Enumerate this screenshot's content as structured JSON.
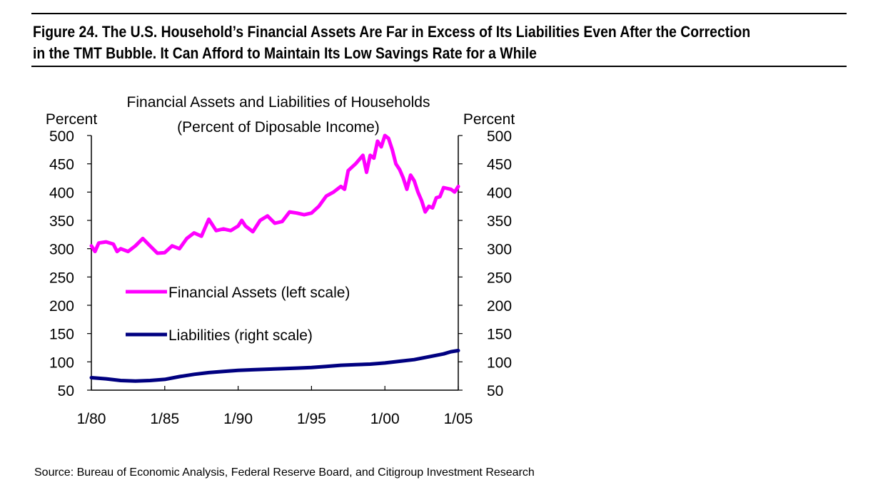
{
  "figure": {
    "title_line1": "Figure 24.  The U.S. Household’s Financial Assets Are Far in Excess of Its Liabilities Even After the Correction",
    "title_line2": "in the TMT Bubble.  It Can Afford to Maintain Its Low Savings Rate for a While",
    "source": "Source:  Bureau of Economic Analysis, Federal Reserve Board, and Citigroup Investment Research"
  },
  "chart_data": {
    "type": "line",
    "title": "Financial Assets and Liabilities of Households",
    "subtitle": "(Percent of Diposable Income)",
    "ylabel_left": "Percent",
    "ylabel_right": "Percent",
    "xlim": [
      1980,
      2005
    ],
    "ylim": [
      50,
      500
    ],
    "yticks": [
      500,
      450,
      400,
      350,
      300,
      250,
      200,
      150,
      100,
      50
    ],
    "ytick_labels": [
      "500",
      "450",
      "400",
      "350",
      "300",
      "250",
      "200",
      "150",
      "100",
      "50"
    ],
    "xticks": [
      1980,
      1985,
      1990,
      1995,
      2000,
      2005
    ],
    "xtick_labels": [
      "1/80",
      "1/85",
      "1/90",
      "1/95",
      "1/00",
      "1/05"
    ],
    "legend_position": "center-left",
    "series": [
      {
        "name": "Financial Assets (left scale)",
        "color": "#ff00ff",
        "x": [
          1980.0,
          1980.25,
          1980.5,
          1981.0,
          1981.5,
          1981.75,
          1982.0,
          1982.5,
          1983.0,
          1983.5,
          1984.0,
          1984.5,
          1985.0,
          1985.5,
          1986.0,
          1986.5,
          1987.0,
          1987.5,
          1987.75,
          1988.0,
          1988.5,
          1989.0,
          1989.5,
          1990.0,
          1990.25,
          1990.5,
          1991.0,
          1991.5,
          1992.0,
          1992.5,
          1993.0,
          1993.5,
          1994.0,
          1994.5,
          1995.0,
          1995.5,
          1996.0,
          1996.5,
          1997.0,
          1997.25,
          1997.5,
          1998.0,
          1998.5,
          1998.75,
          1999.0,
          1999.25,
          1999.5,
          1999.75,
          2000.0,
          2000.25,
          2000.5,
          2000.75,
          2001.0,
          2001.25,
          2001.5,
          2001.75,
          2002.0,
          2002.25,
          2002.5,
          2002.75,
          2003.0,
          2003.25,
          2003.5,
          2003.75,
          2004.0,
          2004.5,
          2004.75,
          2005.0
        ],
        "values": [
          305,
          295,
          310,
          312,
          308,
          295,
          300,
          295,
          305,
          318,
          305,
          292,
          293,
          305,
          300,
          318,
          328,
          322,
          337,
          352,
          332,
          335,
          332,
          340,
          350,
          340,
          330,
          350,
          358,
          345,
          348,
          365,
          363,
          360,
          363,
          375,
          393,
          400,
          410,
          405,
          438,
          450,
          465,
          435,
          465,
          460,
          490,
          480,
          500,
          495,
          475,
          450,
          440,
          425,
          405,
          430,
          420,
          400,
          385,
          365,
          375,
          372,
          390,
          392,
          408,
          405,
          400,
          410
        ]
      },
      {
        "name": "Liabilities (right scale)",
        "color": "#000080",
        "x": [
          1980.0,
          1981.0,
          1982.0,
          1983.0,
          1984.0,
          1985.0,
          1986.0,
          1987.0,
          1988.0,
          1989.0,
          1990.0,
          1991.0,
          1992.0,
          1993.0,
          1994.0,
          1995.0,
          1996.0,
          1997.0,
          1998.0,
          1999.0,
          2000.0,
          2001.0,
          2002.0,
          2003.0,
          2004.0,
          2004.5,
          2005.0
        ],
        "values": [
          72,
          70,
          67,
          66,
          67,
          69,
          74,
          78,
          81,
          83,
          85,
          86,
          87,
          88,
          89,
          90,
          92,
          94,
          95,
          96,
          98,
          101,
          104,
          109,
          114,
          118,
          120
        ]
      }
    ]
  }
}
